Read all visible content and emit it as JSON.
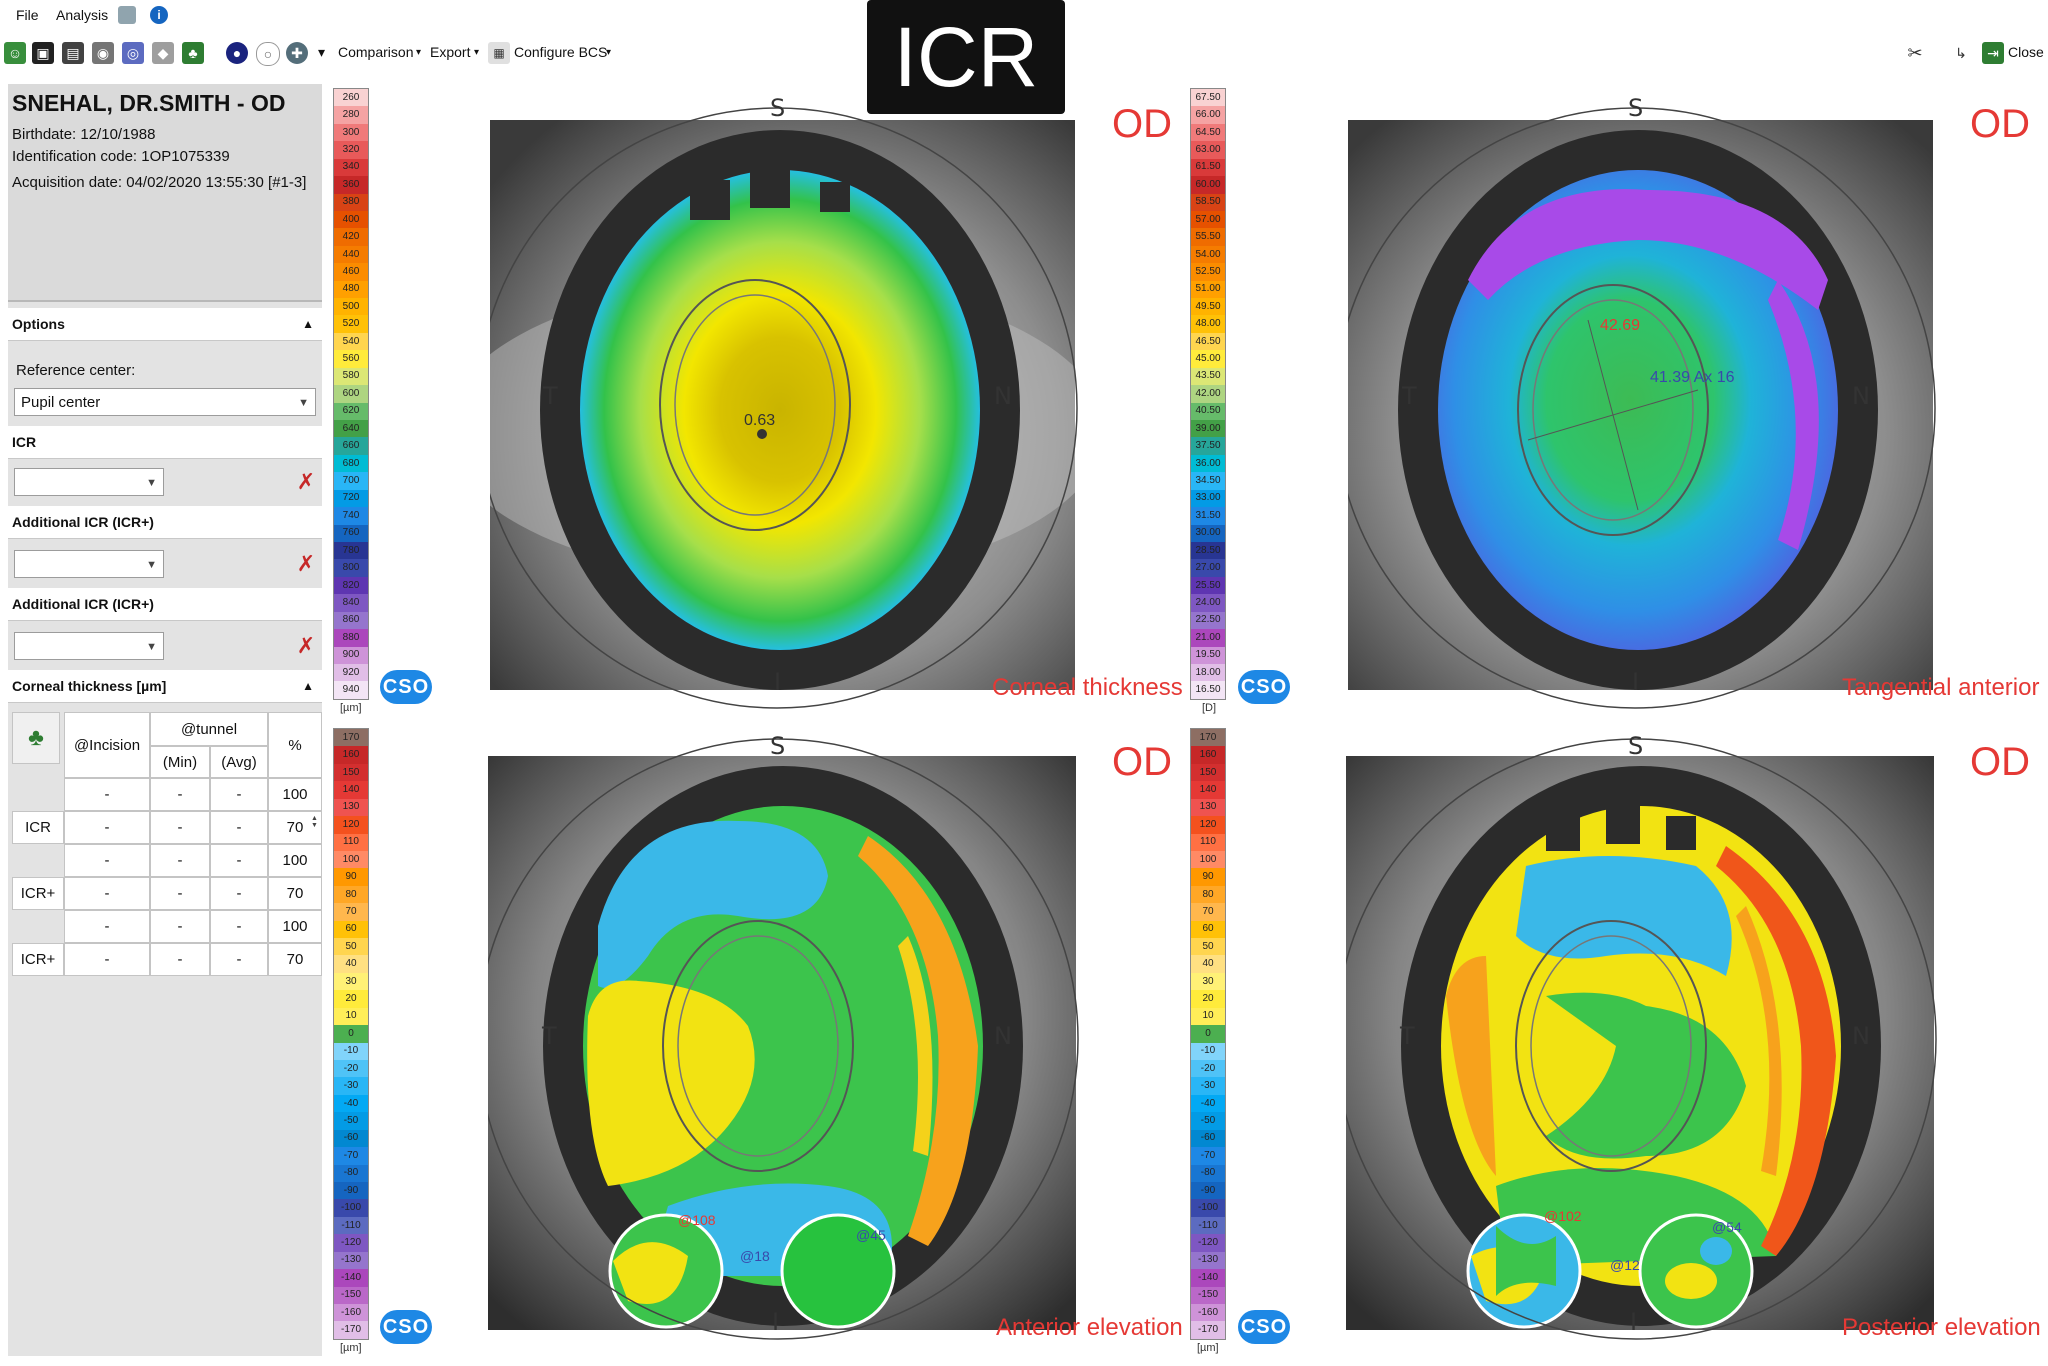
{
  "menu": {
    "file": "File",
    "analysis": "Analysis"
  },
  "toolbar": {
    "comparison": "Comparison",
    "export": "Export",
    "configure_bcs": "Configure BCS",
    "close": "Close"
  },
  "banner": {
    "text": "ICR"
  },
  "patient": {
    "name": "SNEHAL, DR.SMITH - OD",
    "birthdate": "Birthdate: 12/10/1988",
    "identification": "Identification code: 1OP1075339",
    "acquisition": "Acquisition date: 04/02/2020 13:55:30 [#1-3]"
  },
  "options": {
    "header": "Options",
    "reference_center_label": "Reference center:",
    "reference_center_value": "Pupil center",
    "icr_label": "ICR",
    "additional_icr_label_1": "Additional ICR (ICR+)",
    "additional_icr_label_2": "Additional ICR (ICR+)"
  },
  "thickness": {
    "header": "Corneal thickness [µm]",
    "col_incision": "@Incision",
    "col_tunnel": "@tunnel",
    "col_min": "(Min)",
    "col_avg": "(Avg)",
    "col_pct": "%",
    "rows": [
      {
        "label": "",
        "inc": "-",
        "min": "-",
        "avg": "-",
        "pct": "100"
      },
      {
        "label": "ICR",
        "inc": "-",
        "min": "-",
        "avg": "-",
        "pct": "70"
      },
      {
        "label": "",
        "inc": "-",
        "min": "-",
        "avg": "-",
        "pct": "100"
      },
      {
        "label": "ICR+",
        "inc": "-",
        "min": "-",
        "avg": "-",
        "pct": "70"
      },
      {
        "label": "",
        "inc": "-",
        "min": "-",
        "avg": "-",
        "pct": "100"
      },
      {
        "label": "ICR+",
        "inc": "-",
        "min": "-",
        "avg": "-",
        "pct": "70"
      }
    ]
  },
  "scales": {
    "thickness": {
      "unit": "[µm]",
      "values": [
        "260",
        "280",
        "300",
        "320",
        "340",
        "360",
        "380",
        "400",
        "420",
        "440",
        "460",
        "480",
        "500",
        "520",
        "540",
        "560",
        "580",
        "600",
        "620",
        "640",
        "660",
        "680",
        "700",
        "720",
        "740",
        "760",
        "780",
        "800",
        "820",
        "840",
        "860",
        "880",
        "900",
        "920",
        "940"
      ],
      "colors": [
        "#f9d2d2",
        "#f5a3a3",
        "#f07a7a",
        "#e85a5a",
        "#d93a3a",
        "#c62828",
        "#d84315",
        "#e65100",
        "#ef6c00",
        "#f57c00",
        "#fb8c00",
        "#ffa000",
        "#ffb300",
        "#ffc107",
        "#ffd54f",
        "#ffeb3b",
        "#dce775",
        "#aed581",
        "#66bb6a",
        "#43a047",
        "#26a69a",
        "#00bcd4",
        "#29b6f6",
        "#039be5",
        "#1e88e5",
        "#1565c0",
        "#283593",
        "#3949ab",
        "#5e35b1",
        "#7e57c2",
        "#9575cd",
        "#ab47bc",
        "#ce93d8",
        "#e1bee7",
        "#f3e5f5"
      ]
    },
    "tangential": {
      "unit": "[D]",
      "values": [
        "67.50",
        "66.00",
        "64.50",
        "63.00",
        "61.50",
        "60.00",
        "58.50",
        "57.00",
        "55.50",
        "54.00",
        "52.50",
        "51.00",
        "49.50",
        "48.00",
        "46.50",
        "45.00",
        "43.50",
        "42.00",
        "40.50",
        "39.00",
        "37.50",
        "36.00",
        "34.50",
        "33.00",
        "31.50",
        "30.00",
        "28.50",
        "27.00",
        "25.50",
        "24.00",
        "22.50",
        "21.00",
        "19.50",
        "18.00",
        "16.50"
      ],
      "colors": [
        "#f9d2d2",
        "#f5a3a3",
        "#f07a7a",
        "#e85a5a",
        "#d93a3a",
        "#c62828",
        "#d84315",
        "#e65100",
        "#ef6c00",
        "#f57c00",
        "#fb8c00",
        "#ffa000",
        "#ffb300",
        "#ffc107",
        "#ffd54f",
        "#ffeb3b",
        "#dce775",
        "#aed581",
        "#66bb6a",
        "#43a047",
        "#26a69a",
        "#00bcd4",
        "#29b6f6",
        "#039be5",
        "#1e88e5",
        "#1565c0",
        "#283593",
        "#3949ab",
        "#5e35b1",
        "#7e57c2",
        "#9575cd",
        "#ab47bc",
        "#ce93d8",
        "#e1bee7",
        "#f3e5f5"
      ]
    },
    "elevation_left": {
      "unit": "[µm]",
      "values": [
        "170",
        "160",
        "150",
        "140",
        "130",
        "120",
        "110",
        "100",
        "90",
        "80",
        "70",
        "60",
        "50",
        "40",
        "30",
        "20",
        "10",
        "0",
        "-10",
        "-20",
        "-30",
        "-40",
        "-50",
        "-60",
        "-70",
        "-80",
        "-90",
        "-100",
        "-110",
        "-120",
        "-130",
        "-140",
        "-150",
        "-160",
        "-170"
      ],
      "colors": [
        "#8d6e63",
        "#c62828",
        "#d32f2f",
        "#e53935",
        "#ef5350",
        "#f4511e",
        "#ff7043",
        "#ff8a65",
        "#ff9800",
        "#ffa726",
        "#ffb74d",
        "#ffc107",
        "#ffd54f",
        "#ffe082",
        "#fff176",
        "#ffeb3b",
        "#ffee58",
        "#4caf50",
        "#81d4fa",
        "#4fc3f7",
        "#29b6f6",
        "#03a9f4",
        "#039be5",
        "#0288d1",
        "#1e88e5",
        "#1976d2",
        "#1565c0",
        "#3949ab",
        "#5c6bc0",
        "#7e57c2",
        "#9575cd",
        "#ab47bc",
        "#ba68c8",
        "#ce93d8",
        "#e1bee7"
      ]
    },
    "elevation_right": {
      "unit": "[µm]",
      "values": [
        "170",
        "160",
        "150",
        "140",
        "130",
        "120",
        "110",
        "100",
        "90",
        "80",
        "70",
        "60",
        "50",
        "40",
        "30",
        "20",
        "10",
        "0",
        "-10",
        "-20",
        "-30",
        "-40",
        "-50",
        "-60",
        "-70",
        "-80",
        "-90",
        "-100",
        "-110",
        "-120",
        "-130",
        "-140",
        "-150",
        "-160",
        "-170"
      ],
      "colors": [
        "#8d6e63",
        "#c62828",
        "#d32f2f",
        "#e53935",
        "#ef5350",
        "#f4511e",
        "#ff7043",
        "#ff8a65",
        "#ff9800",
        "#ffa726",
        "#ffb74d",
        "#ffc107",
        "#ffd54f",
        "#ffe082",
        "#fff176",
        "#ffeb3b",
        "#ffee58",
        "#4caf50",
        "#81d4fa",
        "#4fc3f7",
        "#29b6f6",
        "#03a9f4",
        "#039be5",
        "#0288d1",
        "#1e88e5",
        "#1976d2",
        "#1565c0",
        "#3949ab",
        "#5c6bc0",
        "#7e57c2",
        "#9575cd",
        "#ab47bc",
        "#ba68c8",
        "#ce93d8",
        "#e1bee7"
      ]
    }
  },
  "cso_label": "CSO",
  "maps": {
    "od": "OD",
    "corneal_thickness": {
      "title": "Corneal thickness",
      "center_value": "0.63"
    },
    "tangential_anterior": {
      "title": "Tangential anterior",
      "k1": "42.69",
      "k2": "41.39 Ax 16"
    },
    "anterior_elevation": {
      "title": "Anterior elevation",
      "mark_a": "@108",
      "mark_b": "@18",
      "mark_c": "@45"
    },
    "posterior_elevation": {
      "title": "Posterior elevation",
      "mark_a": "@102",
      "mark_b": "@12",
      "mark_c": "@54"
    }
  },
  "orientation": {
    "s": "S",
    "t": "T",
    "n": "N",
    "i": "I"
  }
}
